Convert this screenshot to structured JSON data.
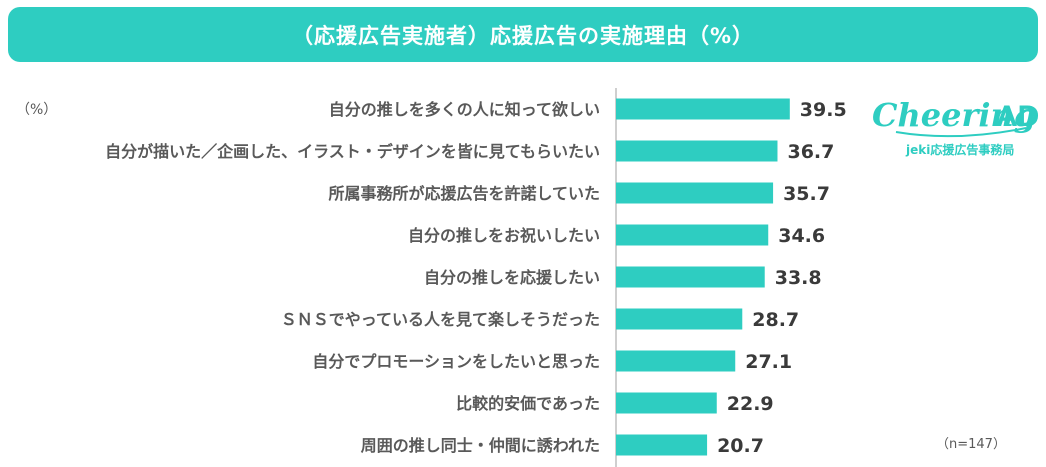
{
  "header": {
    "title": "（応援広告実施者）応援広告の実施理由（%）"
  },
  "unit_label": "（%）",
  "sample_note": "（n=147）",
  "logo": {
    "name": "Cheering AD",
    "tagline": "jeki応援広告事務局",
    "color": "#2ecdc1"
  },
  "colors": {
    "accent": "#2ecdc1",
    "bar": "#2ecdc1",
    "axis": "#bfbfbf"
  },
  "chart_data": {
    "type": "bar",
    "orientation": "horizontal",
    "title": "（応援広告実施者）応援広告の実施理由（%）",
    "unit": "%",
    "categories": [
      "自分の推しを多くの人に知って欲しい",
      "自分が描いた／企画した、イラスト・デザインを皆に見てもらいたい",
      "所属事務所が応援広告を許諾していた",
      "自分の推しをお祝いしたい",
      "自分の推しを応援したい",
      "ＳＮＳでやっている人を見て楽しそうだった",
      "自分でプロモーションをしたいと思った",
      "比較的安価であった",
      "周囲の推し同士・仲間に誘われた"
    ],
    "values": [
      39.5,
      36.7,
      35.7,
      34.6,
      33.8,
      28.7,
      27.1,
      22.9,
      20.7
    ],
    "value_labels": [
      "39.5",
      "36.7",
      "35.7",
      "34.6",
      "33.8",
      "28.7",
      "27.1",
      "22.9",
      "20.7"
    ],
    "xlim": [
      0,
      100
    ],
    "grid": false,
    "legend": "none",
    "n": 147
  }
}
